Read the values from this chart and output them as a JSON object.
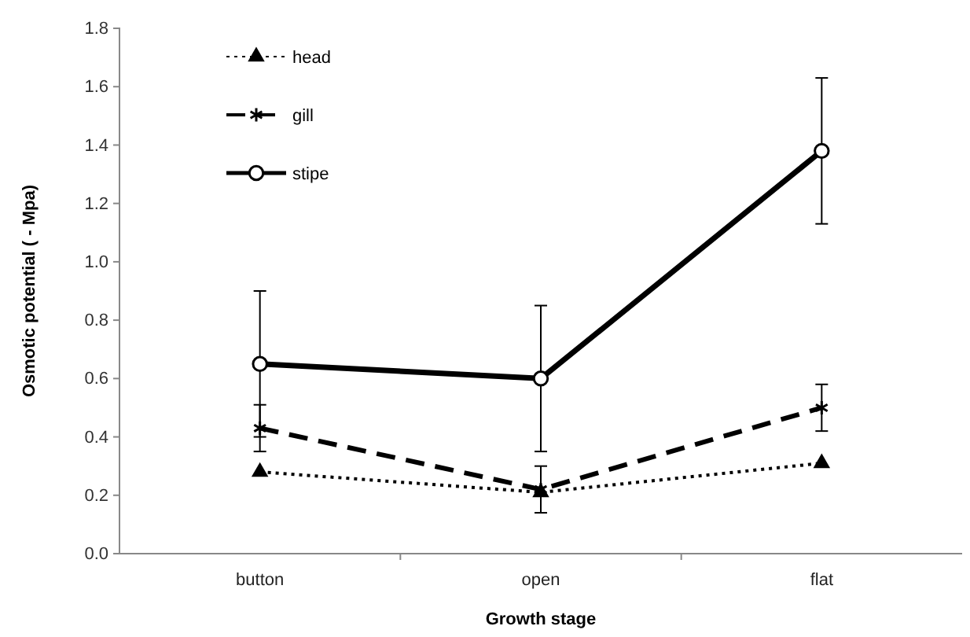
{
  "chart_data": {
    "type": "line",
    "xlabel": "Growth stage",
    "ylabel": "Osmotic potential ( - Mpa)",
    "categories": [
      "button",
      "open",
      "flat"
    ],
    "ylim": [
      0,
      1.8
    ],
    "yticks": [
      {
        "value": 0,
        "label": "0.0"
      },
      0.2,
      0.4,
      0.6,
      0.8,
      {
        "value": 1,
        "label": "1.0"
      },
      1.2,
      1.4,
      1.6,
      1.8
    ],
    "grid": false,
    "legend": "top left",
    "series": [
      {
        "name": "head",
        "color": "#000000",
        "values": [
          0.28,
          0.21,
          0.31
        ],
        "marker": "triangle",
        "line_style": "dotted"
      },
      {
        "name": "gill",
        "color": "#000000",
        "values": [
          0.43,
          0.22,
          0.5
        ],
        "errors": [
          0.08,
          0.08,
          0.08
        ],
        "marker": "cross",
        "line_style": "dashed"
      },
      {
        "name": "stipe",
        "color": "#000000",
        "values": [
          0.65,
          0.6,
          1.38
        ],
        "errors": [
          0.25,
          0.25,
          0.25
        ],
        "marker": "circle",
        "line_style": "solid"
      }
    ]
  }
}
